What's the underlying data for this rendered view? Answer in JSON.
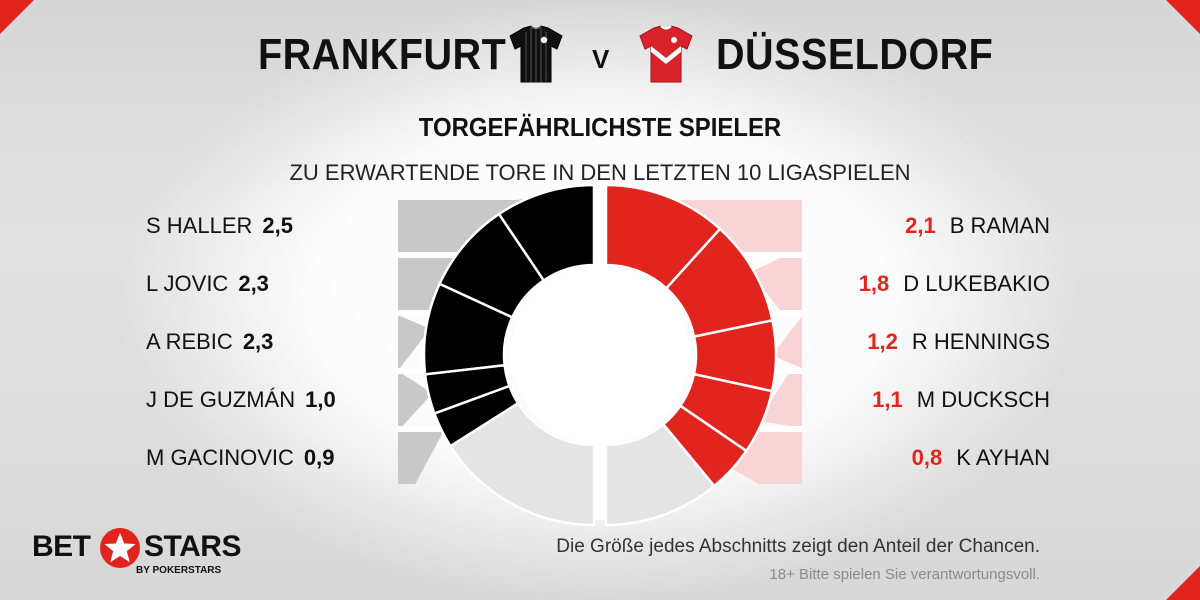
{
  "match": {
    "home_team": "FRANKFURT",
    "versus": "V",
    "away_team": "DÜSSELDORF"
  },
  "colors": {
    "home": "#000000",
    "away": "#e2241f",
    "home_panel": "#c8c8c8",
    "away_panel": "#f8d4d6",
    "remaining": "#e4e4e4",
    "brand_red": "#e2241f"
  },
  "icons": {
    "home_jersey": "black-striped-jersey-icon",
    "away_jersey": "red-white-jersey-icon",
    "logo_star": "red-star-icon"
  },
  "chart_data": {
    "type": "pie",
    "title": "TORGEFÄHRLICHSTE SPIELER",
    "subtitle": "ZU ERWARTENDE TORE IN DEN LETZTEN 10 LIGASPIELEN",
    "note": "Die Größe jedes Abschnitts zeigt den Anteil der Chancen.",
    "series": [
      {
        "team": "FRANKFURT",
        "players": [
          {
            "name": "S HALLER",
            "label": "2,5",
            "value": 2.5
          },
          {
            "name": "L JOVIC",
            "label": "2,3",
            "value": 2.3
          },
          {
            "name": "A REBIC",
            "label": "2,3",
            "value": 2.3
          },
          {
            "name": "J DE GUZMÁN",
            "label": "1,0",
            "value": 1.0
          },
          {
            "name": "M GACINOVIC",
            "label": "0,9",
            "value": 0.9
          }
        ],
        "share_of_half": 0.68
      },
      {
        "team": "DÜSSELDORF",
        "players": [
          {
            "name": "B RAMAN",
            "label": "2,1",
            "value": 2.1
          },
          {
            "name": "D LUKEBAKIO",
            "label": "1,8",
            "value": 1.8
          },
          {
            "name": "R HENNINGS",
            "label": "1,2",
            "value": 1.2
          },
          {
            "name": "M DUCKSCH",
            "label": "1,1",
            "value": 1.1
          },
          {
            "name": "K AYHAN",
            "label": "0,8",
            "value": 0.8
          }
        ],
        "share_of_half": 0.78
      }
    ]
  },
  "branding": {
    "bet": "BET",
    "stars": "STARS",
    "sub": "BY POKERSTARS"
  },
  "footer": {
    "disclaimer": "18+ Bitte spielen Sie verantwortungsvoll."
  }
}
